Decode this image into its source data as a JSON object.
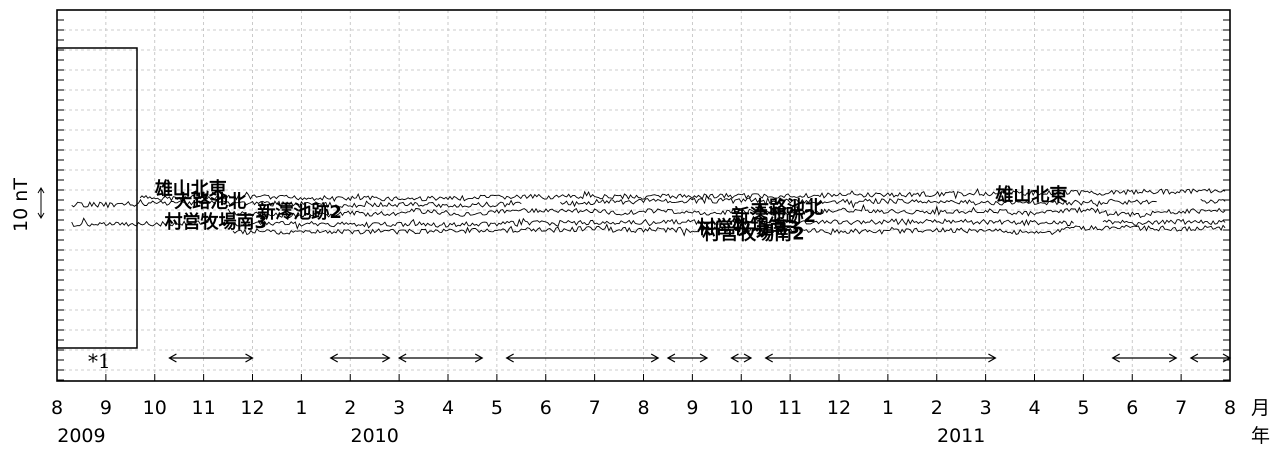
{
  "chart_data": {
    "type": "line",
    "x_ticks": [
      "8",
      "9",
      "10",
      "11",
      "12",
      "1",
      "2",
      "3",
      "4",
      "5",
      "6",
      "7",
      "8",
      "9",
      "10",
      "11",
      "12",
      "1",
      "2",
      "3",
      "4",
      "5",
      "6",
      "7",
      "8"
    ],
    "x_unit_label": "月",
    "year_unit_label": "年",
    "years": [
      {
        "label": "2009",
        "month_index": 0.5
      },
      {
        "label": "2010",
        "month_index": 6.5
      },
      {
        "label": "2011",
        "month_index": 18.5
      }
    ],
    "ylabel": "10 nT",
    "note_label": "*1",
    "series": [
      {
        "name": "雄山北東",
        "label_copies": 2,
        "segments": [
          {
            "x": [
              1.7,
              2.5,
              4,
              6,
              8,
              9,
              11,
              13,
              15,
              17,
              19,
              20.5,
              21.5,
              22.2,
              23,
              23.9
            ],
            "y": [
              2.4,
              2.3,
              2.6,
              2.2,
              2.1,
              2.6,
              2.8,
              2.9,
              3.1,
              3.4,
              3.8,
              4.1,
              4.1,
              4.4,
              4.5,
              4.6
            ]
          }
        ]
      },
      {
        "name": "大路池北",
        "label_copies": 2,
        "segments": [
          {
            "x": [
              0.3,
              1,
              2,
              3,
              4,
              5,
              6,
              7,
              8.5,
              9.5
            ],
            "y": [
              0.2,
              0.1,
              0.5,
              1.0,
              0.6,
              0.3,
              -0.1,
              0.1,
              0.0,
              0.4
            ]
          },
          {
            "x": [
              10.3,
              11,
              12,
              13,
              14,
              15,
              16,
              17,
              18,
              19,
              20,
              21,
              22.5
            ],
            "y": [
              0.5,
              0.9,
              1.2,
              1.4,
              1.5,
              1.3,
              1.2,
              1.3,
              1.0,
              0.8,
              0.9,
              0.8,
              1.1
            ]
          },
          {
            "x": [
              23.4,
              23.9
            ],
            "y": [
              1.4,
              1.2
            ]
          }
        ]
      },
      {
        "name": "新澪池跡2",
        "label_copies": 2,
        "segments": [
          {
            "x": [
              3.5,
              4,
              4.6,
              5,
              5.6,
              6,
              6.8,
              7.3,
              8,
              8.5,
              9,
              9.8,
              10.5,
              11,
              11.5,
              12,
              13,
              13.5,
              14,
              14.5,
              15,
              16,
              17,
              18,
              19,
              20,
              21,
              22,
              23,
              23.9
            ],
            "y": [
              -2.6,
              -3.0,
              -3.5,
              -3.5,
              -3.2,
              -2.8,
              -3.0,
              -1.9,
              -2.7,
              -3.4,
              -2.4,
              -1.8,
              -2.0,
              -1.9,
              -2.7,
              -2.0,
              -2.4,
              -2.8,
              -1.9,
              -2.2,
              -2.5,
              -1.8,
              -2.1,
              -2.6,
              -1.8,
              -3.0,
              -1.5,
              -3.2,
              -2.0,
              -1.9
            ]
          }
        ]
      },
      {
        "name": "村営牧場南3",
        "label_copies": 2,
        "segments": [
          {
            "x": [
              0.3,
              1,
              2,
              2.6,
              3.1
            ],
            "y": [
              -6.3,
              -6.4,
              -6.3,
              -6.0,
              -5.6
            ]
          },
          {
            "x": [
              3.6,
              4,
              5,
              6,
              7,
              8,
              9,
              10,
              11,
              12,
              13,
              14,
              15,
              16,
              17,
              18,
              19,
              20,
              20.8
            ],
            "y": [
              -6.3,
              -6.3,
              -6.3,
              -6.4,
              -6.3,
              -6.6,
              -6.3,
              -6.0,
              -5.9,
              -5.7,
              -5.6,
              -5.9,
              -5.6,
              -5.8,
              -5.5,
              -5.5,
              -5.7,
              -5.8,
              -6.1
            ]
          },
          {
            "x": [
              21.4,
              22,
              23,
              23.9
            ],
            "y": [
              -5.7,
              -5.9,
              -5.6,
              -5.8
            ]
          }
        ]
      },
      {
        "name": "村営牧場南2",
        "label_copies": 1,
        "segments": [
          {
            "x": [
              3.6,
              4.5,
              5.5,
              6.5,
              7.5,
              8.2,
              9,
              10,
              11,
              12,
              13,
              14,
              15,
              16,
              17,
              18,
              19,
              20,
              20.4,
              20.6,
              21,
              22,
              23,
              23.9
            ],
            "y": [
              -9.0,
              -9.0,
              -9.0,
              -8.8,
              -8.9,
              -8.2,
              -8.7,
              -8.3,
              -7.9,
              -8.4,
              -8.3,
              -8.0,
              -8.2,
              -8.7,
              -8.8,
              -8.4,
              -8.5,
              -9.1,
              -9.0,
              -7.9,
              -7.7,
              -7.7,
              -7.9,
              -7.6
            ]
          }
        ]
      }
    ],
    "periods": [
      [
        2.3,
        4.0
      ],
      [
        5.6,
        6.8
      ],
      [
        7.0,
        8.7
      ],
      [
        9.2,
        12.3
      ],
      [
        12.5,
        13.3
      ],
      [
        13.8,
        14.2
      ],
      [
        14.5,
        19.2
      ],
      [
        21.6,
        22.9
      ],
      [
        23.2,
        24.0
      ]
    ],
    "label_positions": [
      {
        "series": 0,
        "x": 2.0,
        "y": 3.3
      },
      {
        "series": 0,
        "x": 19.2,
        "y": 1.3
      },
      {
        "series": 1,
        "x": 2.4,
        "y": -0.9
      },
      {
        "series": 1,
        "x": 14.2,
        "y": -2.8
      },
      {
        "series": 2,
        "x": 4.1,
        "y": -4.4
      },
      {
        "series": 2,
        "x": 13.8,
        "y": -5.7
      },
      {
        "series": 3,
        "x": 2.2,
        "y": -7.6
      },
      {
        "series": 3,
        "x": 13.1,
        "y": -9.5
      },
      {
        "series": 4,
        "x": 13.2,
        "y": -11.5
      }
    ]
  }
}
